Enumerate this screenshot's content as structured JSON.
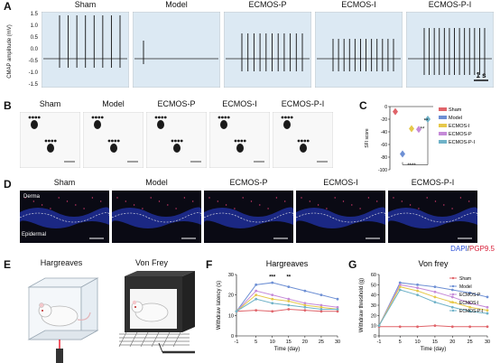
{
  "panel_labels": [
    "A",
    "B",
    "C",
    "D",
    "E",
    "F",
    "G"
  ],
  "groups": [
    "Sham",
    "Model",
    "ECMOS-P",
    "ECMOS-I",
    "ECMOS-P-I"
  ],
  "panel_a": {
    "ylabel": "CMAP amplitude (mV)",
    "yticks": [
      "1.5",
      "1.0",
      "0.5",
      "0.0",
      "-0.5",
      "-1.0",
      "-1.5"
    ],
    "scalebar": "1 s",
    "bg_color": "#dce9f3"
  },
  "panel_d": {
    "tissue_labels": [
      "Derma",
      "Epidermal"
    ],
    "stain_dapi": "DAPI",
    "stain_sep": "/",
    "stain_pgp": "PGP9.5"
  },
  "panel_e": {
    "titles": [
      "Hargreaves",
      "Von Frey"
    ]
  },
  "colors": {
    "sham": "#e0646a",
    "model": "#6d8fd4",
    "ecmos_i": "#e6c84a",
    "ecmos_p": "#c58ad8",
    "ecmos_pi": "#6fb2c8"
  },
  "chart_data": [
    {
      "type": "scatter",
      "panel": "C",
      "ylabel": "SFI score",
      "yticks": [
        0,
        -20,
        -40,
        -60,
        -80,
        -100
      ],
      "ylim": [
        -100,
        0
      ],
      "legend_placement": "right",
      "series": [
        {
          "name": "Sham",
          "values": [
            -8
          ]
        },
        {
          "name": "Model",
          "values": [
            -75
          ]
        },
        {
          "name": "ECMOS-I",
          "values": [
            -35
          ]
        },
        {
          "name": "ECMOS-P",
          "values": [
            -36
          ]
        },
        {
          "name": "ECMOS-P-I",
          "values": [
            -20
          ]
        }
      ],
      "annotations": [
        "**",
        "**",
        "****"
      ]
    },
    {
      "type": "line",
      "panel": "F",
      "title": "Hargreaves",
      "xlabel": "Time (day)",
      "ylabel": "Withdraw latency (s)",
      "x": [
        -1,
        5,
        10,
        15,
        20,
        25,
        30
      ],
      "xticks": [
        "-1",
        "5",
        "10",
        "15",
        "20",
        "25",
        "30"
      ],
      "yticks": [
        0,
        10,
        20,
        30
      ],
      "ylim": [
        0,
        30
      ],
      "series": [
        {
          "name": "Sham",
          "values": [
            12,
            12.5,
            12,
            13,
            12.5,
            12,
            12
          ]
        },
        {
          "name": "Model",
          "values": [
            12,
            25,
            26,
            24,
            22,
            20,
            18
          ]
        },
        {
          "name": "ECMOS-P",
          "values": [
            12,
            22,
            20,
            18,
            16,
            15,
            14
          ]
        },
        {
          "name": "ECMOS-I",
          "values": [
            12,
            20,
            18,
            17,
            15,
            14,
            13
          ]
        },
        {
          "name": "ECMOS-P-I",
          "values": [
            12,
            18,
            16,
            15,
            14,
            13,
            13
          ]
        }
      ],
      "annotations": [
        "***",
        "**"
      ]
    },
    {
      "type": "line",
      "panel": "G",
      "title": "Von frey",
      "xlabel": "Time (day)",
      "ylabel": "Withdraw threshold (g)",
      "x": [
        -1,
        5,
        10,
        15,
        20,
        25,
        30
      ],
      "xticks": [
        "-1",
        "5",
        "10",
        "15",
        "20",
        "25",
        "30"
      ],
      "yticks": [
        0,
        10,
        20,
        30,
        40,
        50,
        60
      ],
      "ylim": [
        0,
        60
      ],
      "legend_placement": "top-right",
      "series": [
        {
          "name": "Sham",
          "values": [
            9,
            9,
            9,
            10,
            9,
            9,
            9
          ]
        },
        {
          "name": "Model",
          "values": [
            10,
            52,
            50,
            48,
            45,
            42,
            38
          ]
        },
        {
          "name": "ECMOS-P",
          "values": [
            10,
            50,
            47,
            43,
            38,
            32,
            28
          ]
        },
        {
          "name": "ECMOS-I",
          "values": [
            10,
            48,
            44,
            38,
            33,
            28,
            25
          ]
        },
        {
          "name": "ECMOS-P-I",
          "values": [
            10,
            45,
            40,
            33,
            28,
            24,
            22
          ]
        }
      ]
    }
  ]
}
